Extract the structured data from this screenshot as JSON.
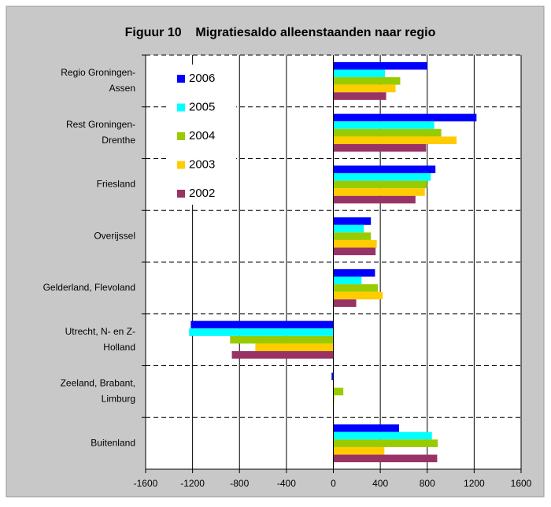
{
  "chart_data": {
    "type": "bar",
    "orientation": "horizontal",
    "title": "Figuur 10    Migratiesaldo alleenstaanden naar regio",
    "categories": [
      [
        "Regio Groningen-",
        "Assen"
      ],
      [
        "Rest Groningen-",
        "Drenthe"
      ],
      [
        "Friesland"
      ],
      [
        "Overijssel"
      ],
      [
        "Gelderland, Flevoland"
      ],
      [
        "Utrecht, N- en Z-",
        "Holland"
      ],
      [
        "Zeeland, Brabant,",
        "Limburg"
      ],
      [
        "Buitenland"
      ]
    ],
    "series": [
      {
        "name": "2006",
        "color": "#0000ff",
        "values": [
          800,
          1220,
          870,
          320,
          355,
          -1215,
          -15,
          560
        ]
      },
      {
        "name": "2005",
        "color": "#00ffff",
        "values": [
          440,
          860,
          830,
          260,
          240,
          -1230,
          0,
          840
        ]
      },
      {
        "name": "2004",
        "color": "#99cc00",
        "values": [
          570,
          920,
          800,
          320,
          380,
          -880,
          85,
          890
        ]
      },
      {
        "name": "2003",
        "color": "#ffcc00",
        "values": [
          530,
          1050,
          780,
          370,
          420,
          -665,
          8,
          435
        ]
      },
      {
        "name": "2002",
        "color": "#993366",
        "values": [
          450,
          790,
          700,
          360,
          195,
          -865,
          0,
          885
        ]
      }
    ],
    "xlim": [
      -1600,
      1600
    ],
    "xticks": [
      -1600,
      -1200,
      -800,
      -400,
      0,
      400,
      800,
      1200,
      1600
    ],
    "grid": true,
    "legend": "top-left"
  }
}
